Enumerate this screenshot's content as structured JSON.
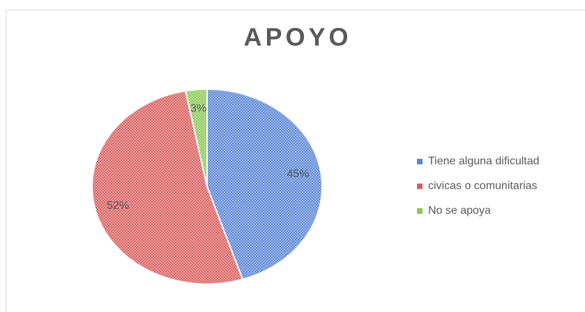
{
  "chart_data": {
    "type": "pie",
    "title": "APOYO",
    "categories": [
      "Tiene alguna dificultad",
      "civicas o comunitarias",
      "No se apoya"
    ],
    "values": [
      45,
      52,
      3
    ],
    "value_labels": [
      "45%",
      "52%",
      "3%"
    ],
    "colors": [
      "#5b86d6",
      "#db5e5e",
      "#8cc957"
    ],
    "legend": "right"
  }
}
